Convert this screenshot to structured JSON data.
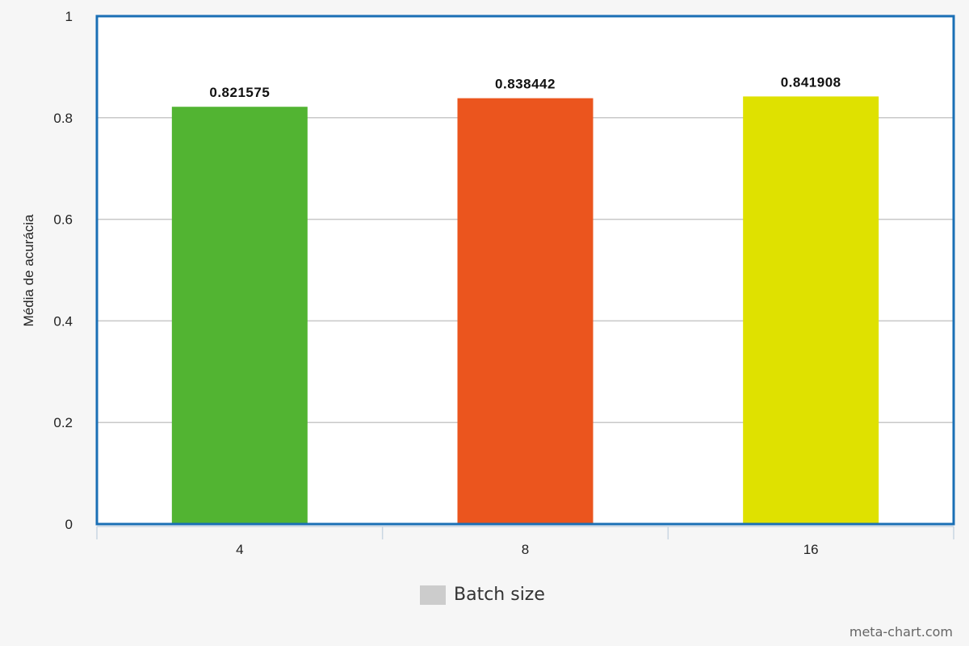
{
  "chart_data": {
    "type": "bar",
    "categories": [
      "4",
      "8",
      "16"
    ],
    "values": [
      0.821575,
      0.838442,
      0.841908
    ],
    "value_labels": [
      "0.821575",
      "0.838442",
      "0.841908"
    ],
    "colors": [
      "#52b432",
      "#eb551e",
      "#dfe100"
    ],
    "ylabel": "Média de acurácia",
    "xlabel": "",
    "ylim": [
      0,
      1
    ],
    "yticks": [
      0,
      0.2,
      0.4,
      0.6,
      0.8,
      1
    ],
    "ytick_labels": [
      "0",
      "0.2",
      "0.4",
      "0.6",
      "0.8",
      "1"
    ],
    "grid": true,
    "legend": {
      "label": "Batch size",
      "color": "#cccccc",
      "position": "bottom-center"
    },
    "frame_color": "#1a6fb5",
    "gridline_color": "#c8c8c8"
  },
  "watermark": "meta-chart.com"
}
